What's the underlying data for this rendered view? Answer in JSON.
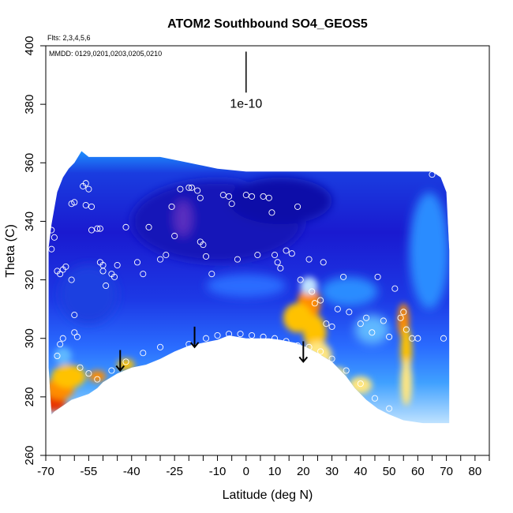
{
  "chart_data": {
    "type": "heatmap",
    "title": "ATOM2 Southbound SO4_GEOS5",
    "xlabel": "Latitude (deg N)",
    "ylabel": "Theta (C)",
    "xlim": [
      -70,
      85
    ],
    "ylim": [
      260,
      400
    ],
    "x_ticks": [
      -70,
      -65,
      -60,
      -55,
      -50,
      -45,
      -40,
      -35,
      -30,
      -25,
      -20,
      -15,
      -10,
      -5,
      0,
      5,
      10,
      15,
      20,
      25,
      30,
      35,
      40,
      45,
      50,
      55,
      60,
      65,
      70,
      75,
      80,
      85
    ],
    "x_tick_labels": [
      {
        "value": -70,
        "label": "-70"
      },
      {
        "value": -55,
        "label": "-55"
      },
      {
        "value": -40,
        "label": "-40"
      },
      {
        "value": -25,
        "label": "-25"
      },
      {
        "value": -10,
        "label": "-10"
      },
      {
        "value": 0,
        "label": "0"
      },
      {
        "value": 10,
        "label": "10"
      },
      {
        "value": 20,
        "label": "20"
      },
      {
        "value": 30,
        "label": "30"
      },
      {
        "value": 40,
        "label": "40"
      },
      {
        "value": 50,
        "label": "50"
      },
      {
        "value": 60,
        "label": "60"
      },
      {
        "value": 70,
        "label": "70"
      },
      {
        "value": 80,
        "label": "80"
      }
    ],
    "y_ticks": [
      260,
      280,
      300,
      320,
      340,
      360,
      380,
      400
    ],
    "y_tick_labels": [
      "260",
      "280",
      "300",
      "320",
      "340",
      "360",
      "380",
      "400"
    ],
    "annotations": {
      "flights": "Flts: 2,3,4,5,6",
      "dates": "MMDD: 0129,0201,0203,0205,0210",
      "scale_label": "1e-10"
    },
    "scale_bar": {
      "x": 0,
      "y_top": 398,
      "y_bottom": 384
    },
    "grid": false,
    "colorscale": [
      "#0000a0",
      "#1a1ad8",
      "#2a4af0",
      "#1e90ff",
      "#5fb8ff",
      "#bfe2ff",
      "#ffffff",
      "#ffe680",
      "#ffc200",
      "#ff8c00",
      "#e83000"
    ],
    "curtain_top": [
      [
        -69,
        331
      ],
      [
        -68,
        339
      ],
      [
        -66,
        350
      ],
      [
        -64,
        355
      ],
      [
        -62,
        358
      ],
      [
        -60,
        360
      ],
      [
        -57.5,
        364
      ],
      [
        -55,
        362
      ],
      [
        -45,
        362
      ],
      [
        -30,
        362
      ],
      [
        -20,
        360
      ],
      [
        -10,
        358
      ],
      [
        0,
        357
      ],
      [
        10,
        357
      ],
      [
        20,
        357
      ],
      [
        30,
        357
      ],
      [
        40,
        357
      ],
      [
        50,
        357
      ],
      [
        60,
        357
      ],
      [
        65,
        357
      ],
      [
        68,
        355
      ],
      [
        70,
        350
      ],
      [
        71,
        330
      ]
    ],
    "curtain_bottom": [
      [
        71,
        271
      ],
      [
        70,
        271
      ],
      [
        66,
        271
      ],
      [
        62,
        271
      ],
      [
        55,
        272
      ],
      [
        50,
        274
      ],
      [
        46,
        276
      ],
      [
        42,
        279
      ],
      [
        38,
        283
      ],
      [
        35,
        287
      ],
      [
        30,
        292
      ],
      [
        25,
        295
      ],
      [
        21,
        297
      ],
      [
        17,
        298.5
      ],
      [
        12,
        299.5
      ],
      [
        8,
        300
      ],
      [
        4,
        300
      ],
      [
        0,
        300
      ],
      [
        -3,
        300.5
      ],
      [
        -6,
        301
      ],
      [
        -10,
        299.5
      ],
      [
        -15,
        298.5
      ],
      [
        -20,
        297.5
      ],
      [
        -25,
        295.5
      ],
      [
        -30,
        293
      ],
      [
        -35,
        291
      ],
      [
        -40,
        290
      ],
      [
        -45,
        288
      ],
      [
        -50,
        285
      ],
      [
        -52,
        283
      ],
      [
        -55,
        281
      ],
      [
        -58,
        280
      ],
      [
        -61,
        279
      ],
      [
        -64,
        277
      ],
      [
        -67,
        275
      ],
      [
        -68,
        274
      ],
      [
        -69,
        290
      ]
    ],
    "color_features": [
      {
        "x": -67,
        "y": 278,
        "rx": 4,
        "ry": 3,
        "color": "#e83000"
      },
      {
        "x": -65,
        "y": 283,
        "rx": 5,
        "ry": 4,
        "color": "#ff8c00"
      },
      {
        "x": -62,
        "y": 287,
        "rx": 6,
        "ry": 4,
        "color": "#ffc200"
      },
      {
        "x": -52,
        "y": 287,
        "rx": 3,
        "ry": 2,
        "color": "#ff8c00"
      },
      {
        "x": -42,
        "y": 291,
        "rx": 3,
        "ry": 2,
        "color": "#ffc200"
      },
      {
        "x": -64,
        "y": 294,
        "rx": 3,
        "ry": 3,
        "color": "#5fb8ff"
      },
      {
        "x": 22,
        "y": 312,
        "rx": 4,
        "ry": 6,
        "color": "#ff8c00"
      },
      {
        "x": 18,
        "y": 307,
        "rx": 5,
        "ry": 5,
        "color": "#ffc200"
      },
      {
        "x": 24,
        "y": 302,
        "rx": 4,
        "ry": 6,
        "color": "#ffc200"
      },
      {
        "x": 25,
        "y": 294,
        "rx": 5,
        "ry": 5,
        "color": "#ffe680"
      },
      {
        "x": 22,
        "y": 318,
        "rx": 3,
        "ry": 3,
        "color": "#bfe2ff"
      },
      {
        "x": 55,
        "y": 306,
        "rx": 2,
        "ry": 6,
        "color": "#ff8c00"
      },
      {
        "x": 56,
        "y": 296,
        "rx": 2,
        "ry": 8,
        "color": "#ffc200"
      },
      {
        "x": 56,
        "y": 285,
        "rx": 2,
        "ry": 8,
        "color": "#ffe680"
      },
      {
        "x": 40,
        "y": 284,
        "rx": 4,
        "ry": 3,
        "color": "#ffe680"
      },
      {
        "x": 32,
        "y": 288,
        "rx": 3,
        "ry": 2,
        "color": "#ffe680"
      }
    ],
    "blue_features": [
      {
        "x": -10,
        "y": 340,
        "rx": 30,
        "ry": 14,
        "color": "#1515b8"
      },
      {
        "x": -22,
        "y": 341,
        "rx": 3,
        "ry": 6,
        "color": "#5a2ec0"
      },
      {
        "x": 12,
        "y": 347,
        "rx": 18,
        "ry": 8,
        "color": "#1010a8"
      },
      {
        "x": -55,
        "y": 315,
        "rx": 10,
        "ry": 10,
        "color": "#1e3fe0"
      },
      {
        "x": 36,
        "y": 316,
        "rx": 10,
        "ry": 5,
        "color": "#2a8cff"
      },
      {
        "x": 64,
        "y": 330,
        "rx": 7,
        "ry": 20,
        "color": "#2a8cff"
      },
      {
        "x": 44,
        "y": 303,
        "rx": 6,
        "ry": 5,
        "color": "#5fb8ff"
      },
      {
        "x": 0,
        "y": 318,
        "rx": 14,
        "ry": 4,
        "color": "#2a6cff"
      }
    ],
    "arrows": [
      {
        "x": -44,
        "y_top": 296,
        "y_bottom": 289
      },
      {
        "x": -18,
        "y_top": 304,
        "y_bottom": 297
      },
      {
        "x": 20,
        "y_top": 299,
        "y_bottom": 292
      }
    ],
    "points": [
      [
        -68,
        330.5
      ],
      [
        -68,
        337
      ],
      [
        -67,
        334.5
      ],
      [
        -66,
        323
      ],
      [
        -65,
        322
      ],
      [
        -64,
        323.5
      ],
      [
        -63,
        324.5
      ],
      [
        -61,
        320
      ],
      [
        -61,
        346
      ],
      [
        -60,
        346.5
      ],
      [
        -57,
        352
      ],
      [
        -56,
        353
      ],
      [
        -56,
        345.5
      ],
      [
        -55,
        351
      ],
      [
        -54,
        337
      ],
      [
        -54,
        345
      ],
      [
        -52,
        337.5
      ],
      [
        -51,
        337.5
      ],
      [
        -51,
        326
      ],
      [
        -50,
        325
      ],
      [
        -50,
        323
      ],
      [
        -49,
        318
      ],
      [
        -47,
        322
      ],
      [
        -46,
        321
      ],
      [
        -45,
        325
      ],
      [
        -42,
        338
      ],
      [
        -38,
        326
      ],
      [
        -36,
        322
      ],
      [
        -34,
        338
      ],
      [
        -30,
        327
      ],
      [
        -28,
        328.5
      ],
      [
        -26,
        345
      ],
      [
        -25,
        335
      ],
      [
        -23,
        351
      ],
      [
        -20,
        351.5
      ],
      [
        -19,
        351.5
      ],
      [
        -17,
        350.5
      ],
      [
        -16,
        348
      ],
      [
        -16,
        333
      ],
      [
        -15,
        332
      ],
      [
        -14,
        328
      ],
      [
        -12,
        322
      ],
      [
        -8,
        349
      ],
      [
        -6,
        348.5
      ],
      [
        -5,
        346
      ],
      [
        -3,
        327
      ],
      [
        0,
        349
      ],
      [
        2,
        348.5
      ],
      [
        4,
        328.5
      ],
      [
        6,
        348.5
      ],
      [
        8,
        348
      ],
      [
        9,
        343
      ],
      [
        10,
        328.5
      ],
      [
        11,
        326
      ],
      [
        12,
        324
      ],
      [
        14,
        330
      ],
      [
        16,
        329
      ],
      [
        18,
        345
      ],
      [
        19,
        320
      ],
      [
        22,
        327
      ],
      [
        23,
        316
      ],
      [
        24,
        312
      ],
      [
        26,
        313
      ],
      [
        27,
        326
      ],
      [
        28,
        305
      ],
      [
        30,
        304
      ],
      [
        32,
        310
      ],
      [
        34,
        321
      ],
      [
        36,
        309
      ],
      [
        40,
        305
      ],
      [
        42,
        307
      ],
      [
        44,
        302
      ],
      [
        46,
        321
      ],
      [
        48,
        306
      ],
      [
        50,
        300.5
      ],
      [
        52,
        317
      ],
      [
        54,
        307
      ],
      [
        55,
        309
      ],
      [
        56,
        303
      ],
      [
        58,
        300
      ],
      [
        60,
        300
      ],
      [
        65,
        356
      ],
      [
        69,
        300
      ],
      [
        -60,
        308
      ],
      [
        -60,
        302
      ],
      [
        -59,
        300.5
      ],
      [
        -65,
        298
      ],
      [
        -66,
        294
      ],
      [
        -64,
        300
      ],
      [
        -58,
        290
      ],
      [
        -55,
        288
      ],
      [
        -52,
        286
      ],
      [
        -47,
        289
      ],
      [
        -42,
        292
      ],
      [
        -36,
        295
      ],
      [
        -30,
        297
      ],
      [
        -20,
        298
      ],
      [
        -14,
        300
      ],
      [
        -10,
        301
      ],
      [
        -6,
        301.5
      ],
      [
        -2,
        301.5
      ],
      [
        2,
        301
      ],
      [
        6,
        300.5
      ],
      [
        10,
        300
      ],
      [
        14,
        299
      ],
      [
        18,
        297.5
      ],
      [
        22,
        297
      ],
      [
        26,
        295.5
      ],
      [
        30,
        293
      ],
      [
        35,
        289
      ],
      [
        40,
        284.5
      ],
      [
        45,
        279.5
      ],
      [
        50,
        276
      ]
    ]
  }
}
